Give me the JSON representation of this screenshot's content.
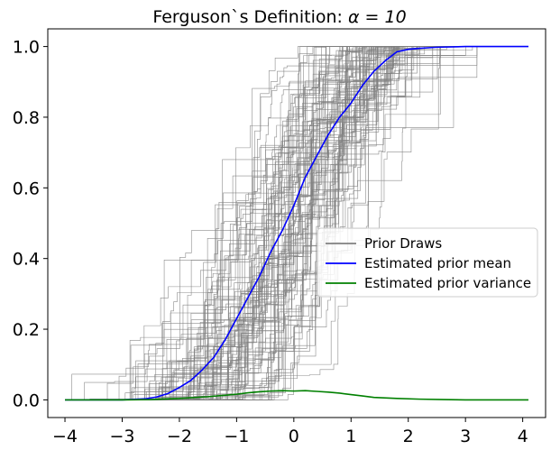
{
  "chart_data": {
    "type": "line",
    "title": "Ferguson`s Definition: α = 10",
    "title_prefix": "Ferguson`s Definition: ",
    "title_math": "α = 10",
    "xlabel": "",
    "ylabel": "",
    "xlim": [
      -4.3,
      4.4
    ],
    "ylim": [
      -0.05,
      1.05
    ],
    "xticks": [
      -4,
      -3,
      -2,
      -1,
      0,
      1,
      2,
      3,
      4
    ],
    "xtick_labels": [
      "−4",
      "−3",
      "−2",
      "−1",
      "0",
      "1",
      "2",
      "3",
      "4"
    ],
    "yticks": [
      0.0,
      0.2,
      0.4,
      0.6,
      0.8,
      1.0
    ],
    "ytick_labels": [
      "0.0",
      "0.2",
      "0.4",
      "0.6",
      "0.8",
      "1.0"
    ],
    "grid": false,
    "legend_placement": "center-right",
    "series": [
      {
        "name": "Prior Draws",
        "color": "#808080",
        "style": "many step-function draws (approx. 100) from Dirichlet process with normal base measure, alpha = 10",
        "count": 100
      },
      {
        "name": "Estimated prior mean",
        "color": "#0000ff",
        "x": [
          -4.0,
          -3.0,
          -2.6,
          -2.4,
          -2.2,
          -2.0,
          -1.8,
          -1.6,
          -1.4,
          -1.2,
          -1.0,
          -0.8,
          -0.6,
          -0.4,
          -0.2,
          0.0,
          0.2,
          0.4,
          0.6,
          0.8,
          1.0,
          1.2,
          1.4,
          1.6,
          1.8,
          2.0,
          2.2,
          2.5,
          3.0,
          3.5,
          4.1
        ],
        "y": [
          0.0,
          0.0,
          0.003,
          0.008,
          0.018,
          0.035,
          0.055,
          0.085,
          0.12,
          0.17,
          0.23,
          0.29,
          0.35,
          0.42,
          0.48,
          0.55,
          0.63,
          0.69,
          0.75,
          0.8,
          0.84,
          0.89,
          0.93,
          0.96,
          0.985,
          0.992,
          0.995,
          0.998,
          1.0,
          1.0,
          1.0
        ]
      },
      {
        "name": "Estimated prior variance",
        "color": "#008000",
        "x": [
          -4.0,
          -3.0,
          -2.5,
          -2.0,
          -1.5,
          -1.0,
          -0.8,
          -0.6,
          -0.4,
          -0.2,
          0.0,
          0.2,
          0.4,
          0.6,
          0.8,
          1.0,
          1.2,
          1.4,
          1.8,
          2.2,
          2.6,
          3.0,
          4.1
        ],
        "y": [
          0.0,
          0.0,
          0.001,
          0.004,
          0.009,
          0.016,
          0.02,
          0.023,
          0.025,
          0.026,
          0.025,
          0.026,
          0.024,
          0.022,
          0.019,
          0.015,
          0.011,
          0.007,
          0.004,
          0.002,
          0.001,
          0.0,
          0.0
        ]
      }
    ]
  },
  "colors": {
    "draws": "#808080",
    "mean": "#0000ff",
    "variance": "#008000"
  }
}
